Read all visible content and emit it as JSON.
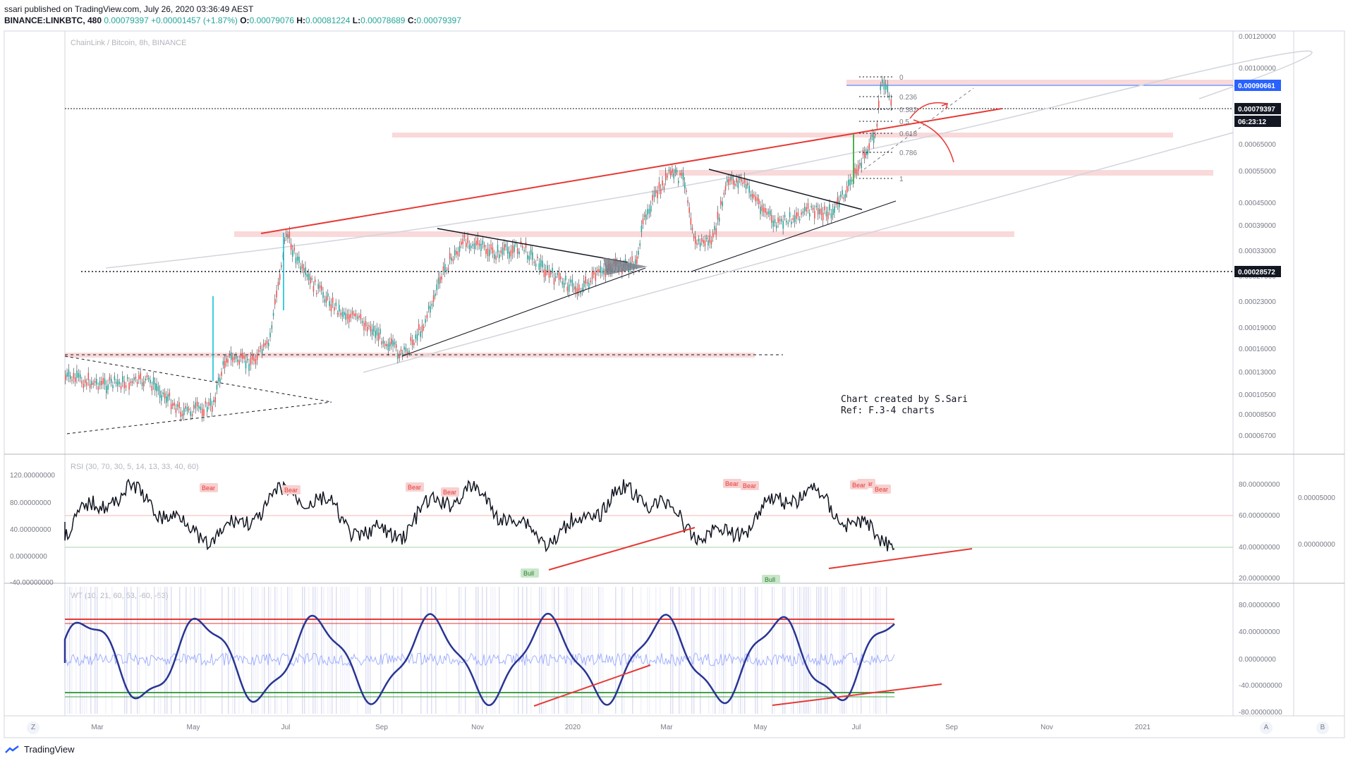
{
  "header": {
    "publisher_line": "ssari published on TradingView.com, July 26, 2020 03:36:49 AEST",
    "symbol": "BINANCE:LINKBTC, 480",
    "last": "0.00079397",
    "change": "+0.00001457 (+1.87%)",
    "o_label": "O:",
    "o_value": "0.00079076",
    "h_label": "H:",
    "h_value": "0.00081224",
    "l_label": "L:",
    "l_value": "0.00078689",
    "c_label": "C:",
    "c_value": "0.00079397"
  },
  "main_pane": {
    "title": "ChainLink / Bitcoin, 8h, BINANCE",
    "price_axis": [
      "0.00120000",
      "0.00100000",
      "0.00065000",
      "0.00055000",
      "0.00045000",
      "0.00039000",
      "0.00033000",
      "0.00027000",
      "0.00023000",
      "0.00019000",
      "0.00016000",
      "0.00013000",
      "0.00010500",
      "0.00008500",
      "0.00006700"
    ],
    "price_tags": [
      {
        "text": "0.00090661",
        "color": "#2962ff"
      },
      {
        "text": "0.00079397",
        "color": "#131722"
      },
      {
        "text": "06:23:12",
        "color": "#131722"
      },
      {
        "text": "0.00028572",
        "color": "#131722"
      }
    ],
    "fib_levels": [
      "0",
      "0.236",
      "0.382",
      "0.5",
      "0.618",
      "0.786",
      "1"
    ],
    "note_line1": "Chart created by S.Sari",
    "note_line2": "Ref: F.3-4 charts"
  },
  "rsi_pane": {
    "title": "RSI (30, 70, 30, 5, 14, 13, 33, 40, 60)",
    "left_axis": [
      "120.00000000",
      "80.00000000",
      "40.00000000",
      "0.00000000",
      "-40.00000000"
    ],
    "right_axis": [
      "80.00000000",
      "60.00000000",
      "40.00000000",
      "20.00000000"
    ],
    "far_right_axis": [
      "0.00005000",
      "0.00000000"
    ],
    "bear_labels": [
      "Bear",
      "Bear",
      "Bear",
      "Bear",
      "Bear",
      "Bear",
      "Bear",
      "Bear",
      "Bear"
    ],
    "bull_labels": [
      "Bull",
      "Bull"
    ]
  },
  "wt_pane": {
    "title": "WT (10, 21, 60, 53, -60, -53)",
    "right_axis": [
      "80.00000000",
      "40.00000000",
      "0.00000000",
      "-40.00000000",
      "-80.00000000"
    ]
  },
  "time_axis": [
    "Mar",
    "May",
    "Jul",
    "Sep",
    "Nov",
    "2020",
    "Mar",
    "May",
    "Jul",
    "Sep",
    "Nov",
    "2021"
  ],
  "buttons": {
    "z": "Z",
    "a": "A",
    "b": "B"
  },
  "footer": {
    "brand": "TradingView"
  },
  "chart_data": [
    {
      "type": "line",
      "title": "ChainLink / Bitcoin, 8h, BINANCE",
      "scale": "log",
      "ylim": [
        6.7e-05,
        0.0012
      ],
      "x": [
        "Mar",
        "May",
        "Jul",
        "Sep",
        "Nov",
        "2020",
        "Mar",
        "May",
        "Jul"
      ],
      "series": [
        {
          "values": [
            0.00011,
            8.5e-05,
            0.00036,
            0.00016,
            0.00034,
            0.0003,
            0.0005,
            0.0004,
            0.00079
          ]
        }
      ]
    },
    {
      "type": "line",
      "title": "RSI (30, 70, 30, 5, 14, 13, 33, 40, 60)",
      "ylim": [
        -40,
        130
      ],
      "x": [
        "Mar",
        "May",
        "Jul",
        "Sep",
        "Nov",
        "2020",
        "Mar",
        "May",
        "Jul"
      ],
      "series": [
        {
          "values": [
            40,
            20,
            100,
            10,
            110,
            10,
            90,
            20,
            50
          ]
        }
      ]
    },
    {
      "type": "line",
      "title": "WT (10, 21, 60, 53, -60, -53)",
      "ylim": [
        -80,
        80
      ],
      "x": [
        "Mar",
        "May",
        "Jul",
        "Sep",
        "Nov",
        "2020",
        "Mar",
        "May",
        "Jul"
      ],
      "series": [
        {
          "values": [
            -40,
            -55,
            60,
            -60,
            65,
            -55,
            60,
            -60,
            -25
          ]
        }
      ]
    }
  ]
}
